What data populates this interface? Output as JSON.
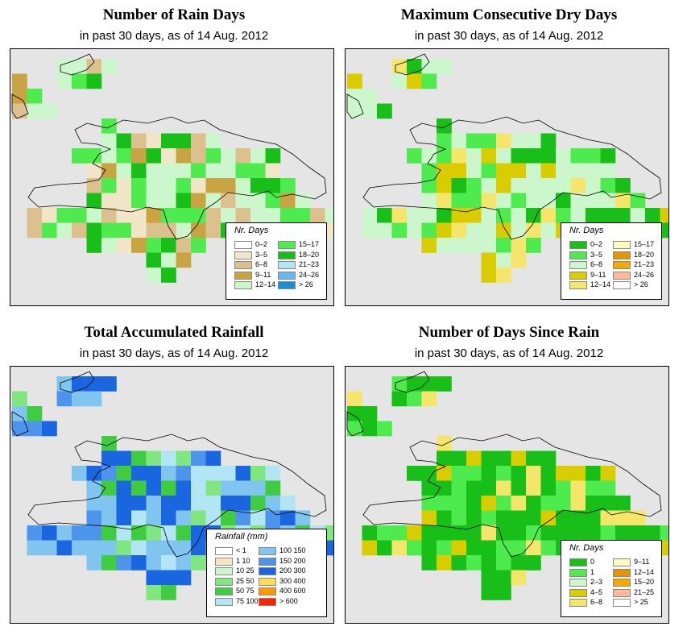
{
  "panels": [
    {
      "title": "Number of Rain Days",
      "subtitle": "in past 30 days, as of  14 Aug. 2012",
      "legend": {
        "title": "Nr. Days",
        "entries": [
          {
            "label": "0–2",
            "color": "#ffffff"
          },
          {
            "label": "3–5",
            "color": "#f2e6c8"
          },
          {
            "label": "6–8",
            "color": "#dcc18f"
          },
          {
            "label": "9–11",
            "color": "#c9a442"
          },
          {
            "label": "12–14",
            "color": "#ccf7cc"
          },
          {
            "label": "15–17",
            "color": "#4deb4d"
          },
          {
            "label": "18–20",
            "color": "#19bf19"
          },
          {
            "label": "21–23",
            "color": "#b3e6f5"
          },
          {
            "label": "24–26",
            "color": "#66b8f0"
          },
          {
            "label": "> 26",
            "color": "#1a90d0"
          }
        ]
      }
    },
    {
      "title": "Maximum Consecutive Dry Days",
      "subtitle": "in past 30 days, as of  14 Aug. 2012",
      "legend": {
        "title": "Nr. Days",
        "entries": [
          {
            "label": "0–2",
            "color": "#19bf19"
          },
          {
            "label": "3–5",
            "color": "#4deb4d"
          },
          {
            "label": "6–8",
            "color": "#ccf7cc"
          },
          {
            "label": "9–11",
            "color": "#d9cc00"
          },
          {
            "label": "12–14",
            "color": "#f5e66b"
          },
          {
            "label": "15–17",
            "color": "#fffdc4"
          },
          {
            "label": "18–20",
            "color": "#e69500"
          },
          {
            "label": "21–23",
            "color": "#f5a800"
          },
          {
            "label": "24–26",
            "color": "#ffbb99"
          },
          {
            "label": "> 26",
            "color": "#ffffff"
          }
        ]
      }
    },
    {
      "title": "Total Accumulated Rainfall",
      "subtitle": "in past 30 days, as of  14 Aug. 2012",
      "legend": {
        "title": "Rainfall (mm)",
        "entries": [
          {
            "label": "< 1",
            "color": "#ffffff"
          },
          {
            "label": "1   10",
            "color": "#f5e6c8"
          },
          {
            "label": "10   25",
            "color": "#ccf7cc"
          },
          {
            "label": "25   50",
            "color": "#80e680"
          },
          {
            "label": "50   75",
            "color": "#40cc40"
          },
          {
            "label": "75  100",
            "color": "#b3e6f5"
          },
          {
            "label": "100  150",
            "color": "#80c4f0"
          },
          {
            "label": "150  200",
            "color": "#4d94ec"
          },
          {
            "label": "200  300",
            "color": "#1a66e0"
          },
          {
            "label": "300  400",
            "color": "#ffdd55"
          },
          {
            "label": "400  600",
            "color": "#ff9900"
          },
          {
            "label": "> 600",
            "color": "#ff2200"
          }
        ]
      }
    },
    {
      "title": "Number of Days Since Rain",
      "subtitle": "in past 30 days, as of  14 Aug. 2012",
      "legend": {
        "title": "Nr. Days",
        "entries": [
          {
            "label": "0",
            "color": "#19bf19"
          },
          {
            "label": "1",
            "color": "#4deb4d"
          },
          {
            "label": "2–3",
            "color": "#ccf7cc"
          },
          {
            "label": "4–5",
            "color": "#d9cc00"
          },
          {
            "label": "6–8",
            "color": "#f5e66b"
          },
          {
            "label": "9–11",
            "color": "#fffdc4"
          },
          {
            "label": "12–14",
            "color": "#e69500"
          },
          {
            "label": "15–20",
            "color": "#f5a800"
          },
          {
            "label": "21–25",
            "color": "#ffbb99"
          },
          {
            "label": "> 25",
            "color": "#ffffff"
          }
        ]
      }
    }
  ]
}
